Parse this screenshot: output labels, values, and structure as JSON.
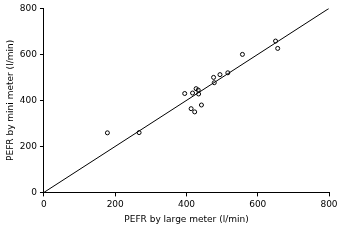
{
  "chart_data": {
    "type": "scatter",
    "x_label": "PEFR by large meter (l/min)",
    "y_label": "PEFR by mini meter (l/min)",
    "xlim": [
      0,
      800
    ],
    "xticks": [
      0,
      200,
      400,
      600,
      800
    ],
    "ylim": [
      0,
      800
    ],
    "yticks": [
      0,
      200,
      400,
      600,
      800
    ],
    "grid": false,
    "series": [
      {
        "type": "scatter",
        "marker": "circle",
        "color": "#000000",
        "x": [
          494,
          395,
          516,
          434,
          476,
          557,
          413,
          442,
          650,
          433,
          417,
          656,
          267,
          478,
          178,
          423,
          427
        ],
        "values": [
          512,
          430,
          520,
          428,
          500,
          600,
          364,
          380,
          658,
          445,
          432,
          626,
          260,
          477,
          259,
          350,
          451
        ]
      },
      {
        "type": "line",
        "line_style": "solid",
        "color": "#000000",
        "x": [
          0,
          800
        ],
        "values": [
          0,
          800
        ]
      }
    ]
  }
}
